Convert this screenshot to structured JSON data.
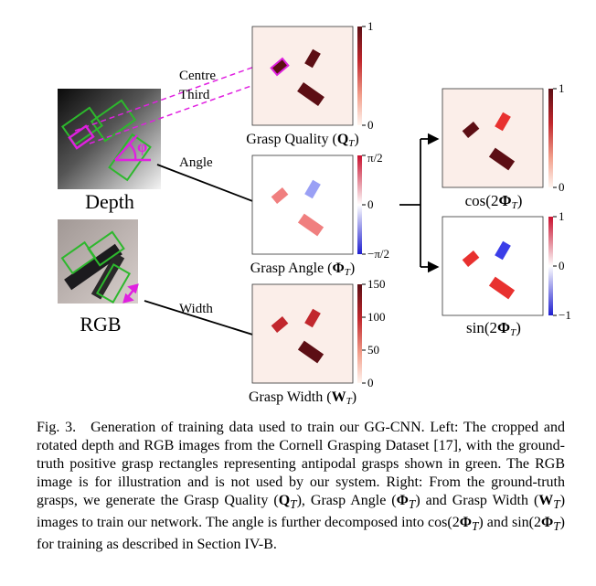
{
  "figure": {
    "left_panel": {
      "depth_label": "Depth",
      "rgb_label": "RGB",
      "centre_label": "Centre",
      "third_label": "Third",
      "angle_label": "Angle",
      "width_label": "Width",
      "phi_symbol": "φ"
    },
    "maps": {
      "quality": {
        "title": "Grasp Quality (",
        "symbol": "Q",
        "sub": "T",
        "close": ")",
        "ticks": [
          "1",
          "0"
        ]
      },
      "angle": {
        "title": "Grasp Angle (",
        "symbol": "Φ",
        "sub": "T",
        "close": ")",
        "ticks": [
          "π/2",
          "0",
          "−π/2"
        ]
      },
      "width": {
        "title": "Grasp Width (",
        "symbol": "W",
        "sub": "T",
        "close": ")",
        "ticks": [
          "150",
          "100",
          "50",
          "0"
        ]
      },
      "cos": {
        "title": "cos(2",
        "symbol": "Φ",
        "sub": "T",
        "close": ")",
        "ticks": [
          "1",
          "0"
        ]
      },
      "sin": {
        "title": "sin(2",
        "symbol": "Φ",
        "sub": "T",
        "close": ")",
        "ticks": [
          "1",
          "0",
          "−1"
        ]
      }
    },
    "colors": {
      "map_background": "#fbeee9",
      "dark_red": "#5c0e14",
      "red": "#e8312f",
      "light_red": "#f07f7f",
      "blue": "#3b3ee8",
      "light_blue": "#9aa0f5",
      "grasp_green": "#2db82d",
      "highlight_magenta": "#e020e0"
    }
  },
  "caption": {
    "label": "Fig. 3.",
    "line1": "Generation of training data used to train our GG-CNN. Left: The cropped and rotated depth and RGB images from the Cornell Grasping Dataset [17], with the ground-truth positive grasp rectangles representing antipodal grasps shown in green. The RGB image is for illustration and is not used by our system. Right: From the ground-truth grasps, we generate the Grasp Quality (",
    "q_sym": "Q",
    "mid1": "), Grasp Angle (",
    "phi_sym": "Φ",
    "mid2": ") and Grasp Width (",
    "w_sym": "W",
    "mid3": ") images to train our network. The angle is further decomposed into cos(2",
    "mid4": ") and sin(2",
    "tail": ") for training as described in Section IV-B.",
    "sub_t": "T"
  }
}
